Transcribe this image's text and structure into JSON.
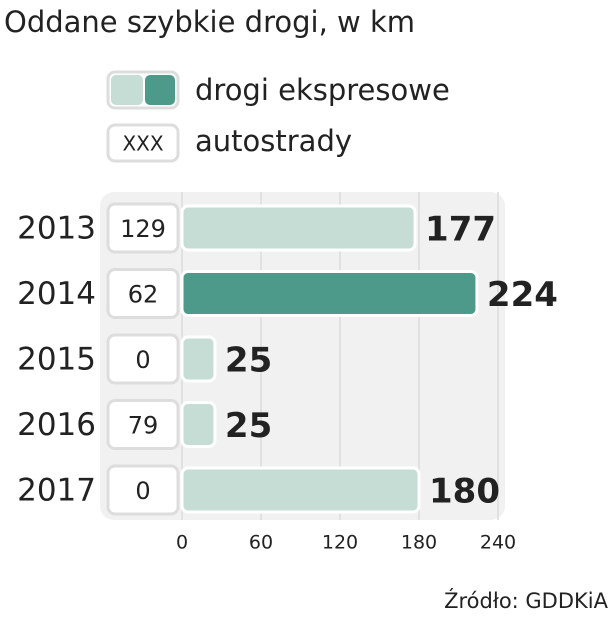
{
  "chart_data": {
    "type": "bar",
    "title": "Oddane szybkie drogi, w km",
    "categories": [
      "2013",
      "2014",
      "2015",
      "2016",
      "2017"
    ],
    "series": [
      {
        "name": "drogi ekspresowe",
        "colors": [
          "#c6ddd5",
          "#4d9a8b",
          "#c6ddd5",
          "#c6ddd5",
          "#c6ddd5"
        ],
        "values": [
          177,
          224,
          25,
          25,
          180
        ]
      },
      {
        "name": "autostrady",
        "sample_label": "XXX",
        "values": [
          129,
          62,
          0,
          79,
          0
        ]
      }
    ],
    "xlim": [
      0,
      240
    ],
    "xticks": [
      0,
      60,
      120,
      180,
      240
    ],
    "grid": true,
    "source": "Źródło: GDDKiA"
  }
}
